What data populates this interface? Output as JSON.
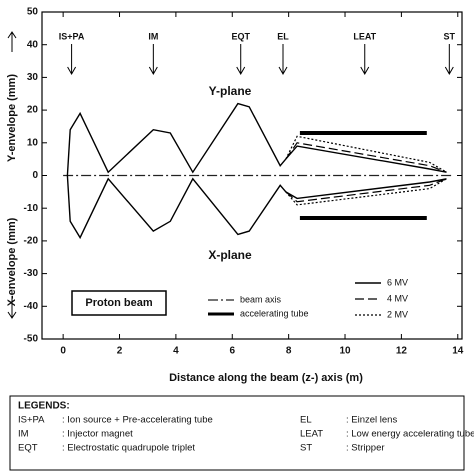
{
  "chart_data": {
    "type": "line",
    "xlabel": "Distance along the beam (z-) axis (m)",
    "ylabel_upper": "Y-envelope (mm)",
    "ylabel_lower": "X-envelope (mm)",
    "xlim": [
      -0.75,
      14.15
    ],
    "ylim": [
      -50,
      50
    ],
    "xticks": [
      0,
      2,
      4,
      6,
      8,
      10,
      12,
      14
    ],
    "yticks": [
      -50,
      -40,
      -30,
      -20,
      -10,
      0,
      10,
      20,
      30,
      40,
      50
    ],
    "stations": [
      {
        "label": "IS+PA",
        "x": 0.3
      },
      {
        "label": "IM",
        "x": 3.2
      },
      {
        "label": "EQT",
        "x": 6.3
      },
      {
        "label": "EL",
        "x": 7.8
      },
      {
        "label": "LEAT",
        "x": 10.7
      },
      {
        "label": "ST",
        "x": 13.7
      }
    ],
    "annotations": [
      "Y-plane",
      "X-plane",
      "Proton beam"
    ],
    "series": [
      {
        "name": "beam axis",
        "color": "#222",
        "style": "dashdot",
        "width": 1.2,
        "x": [
          0,
          13.8
        ],
        "values": [
          0,
          0
        ]
      },
      {
        "name": "accelerating tube",
        "color": "#000",
        "style": "solid",
        "width": 4,
        "x": [
          8.4,
          12.9,
          12.9,
          8.4,
          12.9
        ],
        "values": [
          13,
          13,
          null,
          -13,
          -13
        ]
      },
      {
        "name": "6 MV",
        "color": "#000",
        "style": "solid",
        "width": 1.4,
        "x": [
          0.15,
          0.25,
          0.6,
          1.6,
          3.2,
          3.8,
          4.6,
          6.2,
          6.6,
          7.7,
          7.9,
          8.3,
          13,
          13.6,
          13.6,
          0.15,
          0.25,
          0.6,
          1.6,
          3.2,
          3.8,
          4.6,
          6.2,
          6.6,
          7.7,
          7.9,
          8.3,
          13,
          13.6
        ],
        "values": [
          0,
          14,
          19,
          1,
          14,
          13,
          1,
          22,
          21,
          3,
          5,
          9,
          2,
          1,
          null,
          0,
          -14,
          -19,
          -1,
          -17,
          -14,
          -1,
          -18,
          -17,
          -3,
          -5,
          -7,
          -2,
          -1
        ]
      },
      {
        "name": "4 MV",
        "color": "#000",
        "style": "dash",
        "width": 1.2,
        "x": [
          7.9,
          8.3,
          13,
          13.6,
          13.6,
          7.9,
          8.3,
          13,
          13.6
        ],
        "values": [
          5,
          10,
          3,
          1,
          null,
          -5,
          -8,
          -3,
          -1
        ]
      },
      {
        "name": "2 MV",
        "color": "#000",
        "style": "dot",
        "width": 1.2,
        "x": [
          7.9,
          8.3,
          13,
          13.6,
          13.6,
          7.9,
          8.3,
          13,
          13.6
        ],
        "values": [
          5,
          12,
          4,
          1,
          null,
          -5,
          -9,
          -4,
          -1
        ]
      }
    ]
  },
  "legend_table": {
    "title": "LEGENDS:",
    "rows": [
      [
        "IS+PA",
        ": Ion source + Pre-accelerating tube",
        "EL",
        ": Einzel lens"
      ],
      [
        "IM",
        ": Injector magnet",
        "LEAT",
        ": Low energy accelerating tube"
      ],
      [
        "EQT",
        ": Electrostatic quadrupole triplet",
        "ST",
        ": Stripper"
      ]
    ]
  }
}
